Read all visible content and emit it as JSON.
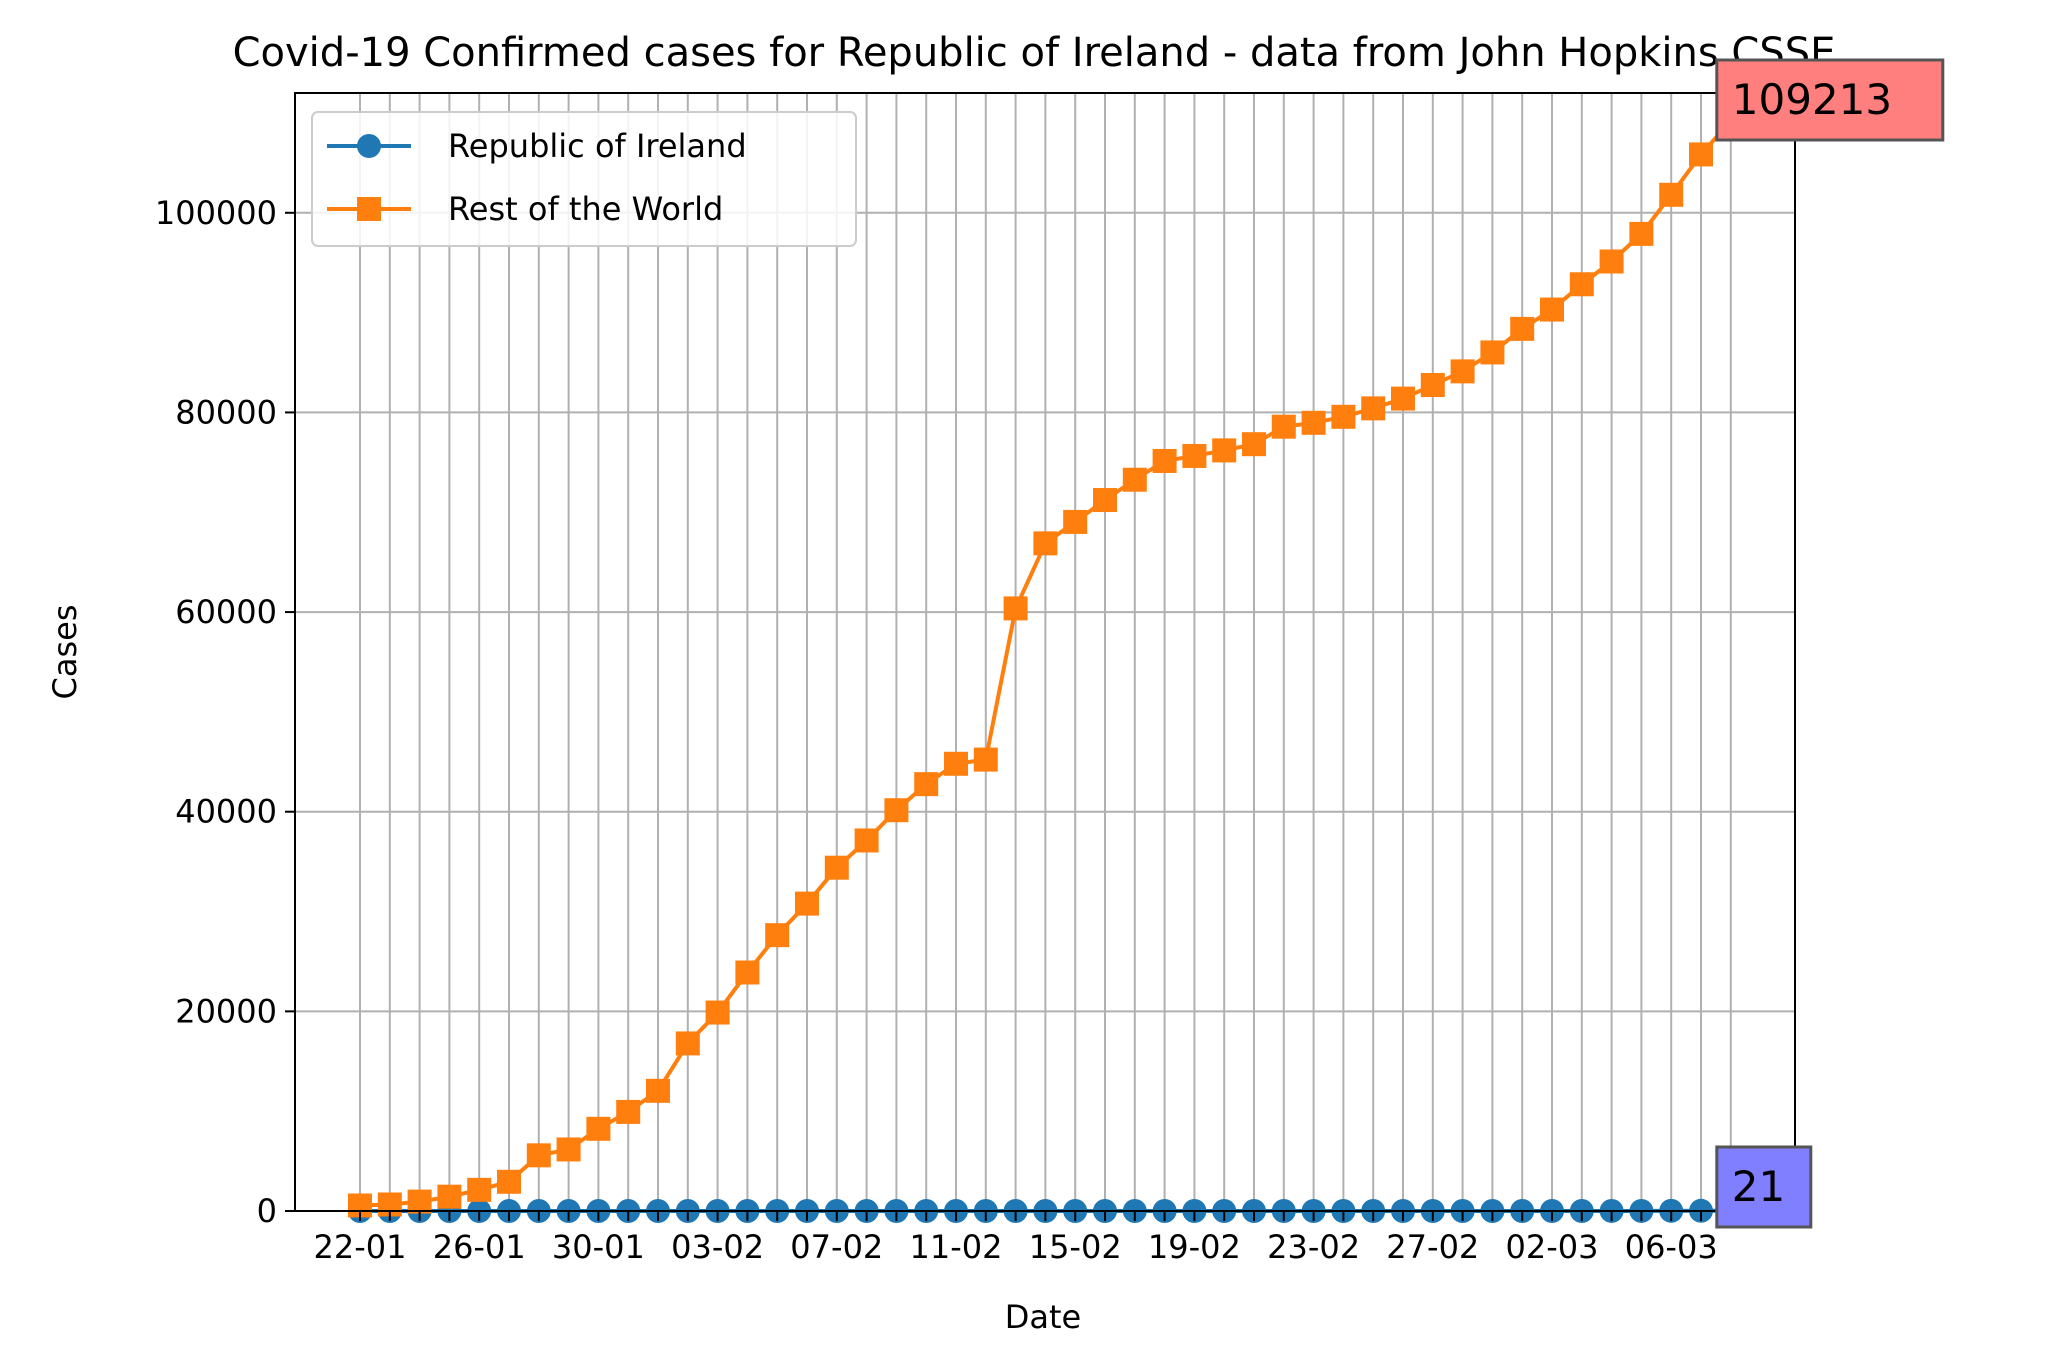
{
  "chart_data": {
    "type": "line",
    "title": "Covid-19 Confirmed cases for Republic of Ireland - data from John Hopkins CSSE",
    "xlabel": "Date",
    "ylabel": "Cases",
    "ylim": [
      0,
      112000
    ],
    "yticks": [
      0,
      20000,
      40000,
      60000,
      80000,
      100000
    ],
    "ytick_labels": [
      "0",
      "20000",
      "40000",
      "60000",
      "80000",
      "100000"
    ],
    "grid": true,
    "legend_position": "upper-left",
    "x": [
      "22-01",
      "23-01",
      "24-01",
      "25-01",
      "26-01",
      "27-01",
      "28-01",
      "29-01",
      "30-01",
      "31-01",
      "01-02",
      "02-02",
      "03-02",
      "04-02",
      "05-02",
      "06-02",
      "07-02",
      "08-02",
      "09-02",
      "10-02",
      "11-02",
      "12-02",
      "13-02",
      "14-02",
      "15-02",
      "16-02",
      "17-02",
      "18-02",
      "19-02",
      "20-02",
      "21-02",
      "22-02",
      "23-02",
      "24-02",
      "25-02",
      "26-02",
      "27-02",
      "28-02",
      "29-02",
      "01-03",
      "02-03",
      "03-03",
      "04-03",
      "05-03",
      "06-03",
      "07-03",
      "08-03"
    ],
    "xtick_labels": [
      "22-01",
      "26-01",
      "30-01",
      "03-02",
      "07-02",
      "11-02",
      "15-02",
      "19-02",
      "23-02",
      "27-02",
      "02-03",
      "06-03"
    ],
    "series": [
      {
        "name": "Republic of Ireland",
        "color": "#1f77b4",
        "marker": "circle",
        "values": [
          0,
          0,
          0,
          0,
          0,
          0,
          0,
          0,
          0,
          0,
          0,
          0,
          0,
          0,
          0,
          0,
          0,
          0,
          0,
          0,
          0,
          0,
          0,
          0,
          0,
          0,
          0,
          0,
          0,
          0,
          0,
          0,
          0,
          0,
          0,
          0,
          0,
          0,
          0,
          1,
          1,
          1,
          6,
          6,
          18,
          19,
          21
        ]
      },
      {
        "name": "Rest of the World",
        "color": "#ff7f0e",
        "marker": "square",
        "values": [
          555,
          654,
          941,
          1434,
          2118,
          2927,
          5578,
          6166,
          8234,
          9927,
          12038,
          16787,
          19881,
          23892,
          27635,
          30794,
          34391,
          37120,
          40150,
          42762,
          44802,
          45221,
          60368,
          66885,
          69030,
          71224,
          73258,
          75136,
          75639,
          76197,
          76819,
          78572,
          78958,
          79561,
          80406,
          81388,
          82746,
          84112,
          86011,
          88369,
          90306,
          92840,
          95120,
          97886,
          101801,
          105847,
          109192
        ]
      }
    ],
    "annotations": [
      {
        "text": "109213",
        "background": "#ff7f7f",
        "anchor_value": 109213
      },
      {
        "text": "21",
        "background": "#7f7fff",
        "anchor_value": 21
      }
    ]
  }
}
